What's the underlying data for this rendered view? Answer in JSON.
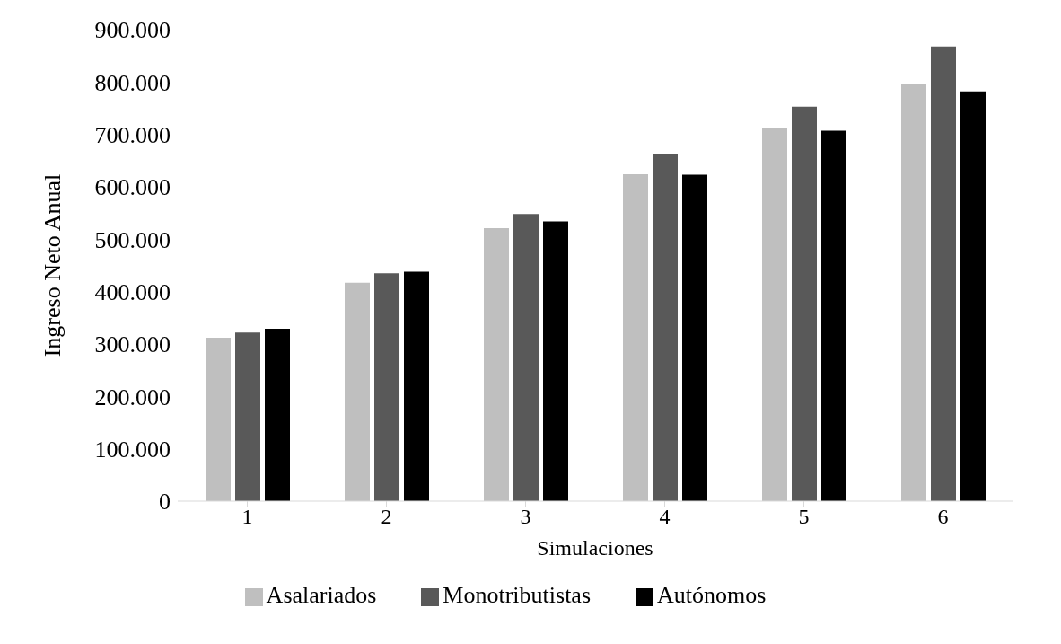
{
  "chart_data": {
    "type": "bar",
    "xlabel": "Simulaciones",
    "ylabel": "Ingreso Neto Anual",
    "categories": [
      "1",
      "2",
      "3",
      "4",
      "5",
      "6"
    ],
    "series": [
      {
        "name": "Asalariados",
        "color": "#bfbfbf",
        "values": [
          312000,
          417000,
          521000,
          624000,
          713000,
          796000
        ]
      },
      {
        "name": "Monotributistas",
        "color": "#595959",
        "values": [
          322000,
          435000,
          548000,
          663000,
          753000,
          868000
        ]
      },
      {
        "name": "Autónomos",
        "color": "#000000",
        "values": [
          329000,
          438000,
          534000,
          623000,
          707000,
          782000
        ]
      }
    ],
    "ylim": [
      0,
      900000
    ],
    "yticks": [
      {
        "value": 0,
        "label": "0"
      },
      {
        "value": 100000,
        "label": "100.000"
      },
      {
        "value": 200000,
        "label": "200.000"
      },
      {
        "value": 300000,
        "label": "300.000"
      },
      {
        "value": 400000,
        "label": "400.000"
      },
      {
        "value": 500000,
        "label": "500.000"
      },
      {
        "value": 600000,
        "label": "600.000"
      },
      {
        "value": 700000,
        "label": "700.000"
      },
      {
        "value": 800000,
        "label": "800.000"
      },
      {
        "value": 900000,
        "label": "900.000"
      }
    ],
    "legend": "bottom"
  }
}
